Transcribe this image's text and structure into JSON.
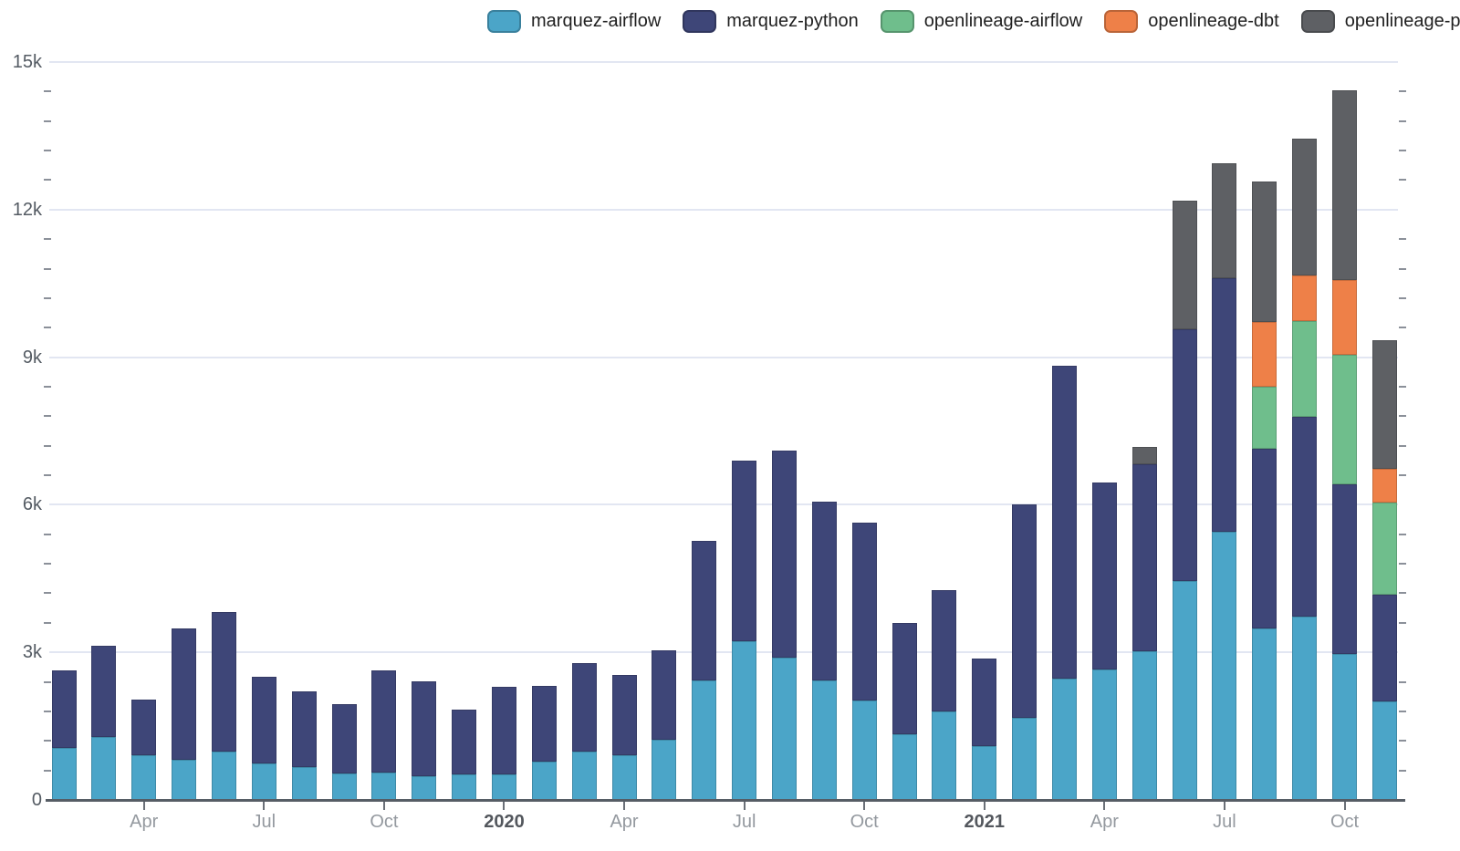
{
  "legend": {
    "position": "top-right-of-center"
  },
  "y_axis": {
    "labels": [
      {
        "value": 0,
        "label": "0"
      },
      {
        "value": 3000,
        "label": "3k"
      },
      {
        "value": 6000,
        "label": "6k"
      },
      {
        "value": 9000,
        "label": "9k"
      },
      {
        "value": 12000,
        "label": "12k"
      },
      {
        "value": 15000,
        "label": "15k"
      }
    ],
    "minor_step": 600,
    "max": 15000
  },
  "x_axis": {
    "ticks": [
      {
        "index": 2,
        "label": "Apr",
        "bold": false
      },
      {
        "index": 5,
        "label": "Jul",
        "bold": false
      },
      {
        "index": 8,
        "label": "Oct",
        "bold": false
      },
      {
        "index": 11,
        "label": "2020",
        "bold": true
      },
      {
        "index": 14,
        "label": "Apr",
        "bold": false
      },
      {
        "index": 17,
        "label": "Jul",
        "bold": false
      },
      {
        "index": 20,
        "label": "Oct",
        "bold": false
      },
      {
        "index": 23,
        "label": "2021",
        "bold": true
      },
      {
        "index": 26,
        "label": "Apr",
        "bold": false
      },
      {
        "index": 29,
        "label": "Jul",
        "bold": false
      },
      {
        "index": 32,
        "label": "Oct",
        "bold": false
      }
    ]
  },
  "chart_data": {
    "type": "bar",
    "stacked": true,
    "title": "",
    "xlabel": "",
    "ylabel": "",
    "ylim": [
      0,
      15000
    ],
    "grid": true,
    "legend_position": "top",
    "categories": [
      "2019-02",
      "2019-03",
      "2019-04",
      "2019-05",
      "2019-06",
      "2019-07",
      "2019-08",
      "2019-09",
      "2019-10",
      "2019-11",
      "2019-12",
      "2020-01",
      "2020-02",
      "2020-03",
      "2020-04",
      "2020-05",
      "2020-06",
      "2020-07",
      "2020-08",
      "2020-09",
      "2020-10",
      "2020-11",
      "2020-12",
      "2021-01",
      "2021-02",
      "2021-03",
      "2021-04",
      "2021-05",
      "2021-06",
      "2021-07",
      "2021-08",
      "2021-09",
      "2021-10",
      "2021-11"
    ],
    "series": [
      {
        "name": "marquez-airflow",
        "color": "#4ba5c8",
        "values": [
          1050,
          1280,
          910,
          815,
          990,
          750,
          675,
          530,
          560,
          490,
          520,
          520,
          780,
          980,
          900,
          1230,
          2420,
          3220,
          2900,
          2430,
          2020,
          1340,
          1790,
          1100,
          1670,
          2460,
          2650,
          3030,
          4450,
          5450,
          3490,
          3730,
          2960,
          2000
        ]
      },
      {
        "name": "marquez-python",
        "color": "#3e4678",
        "values": [
          1575,
          1845,
          1130,
          2675,
          2835,
          1760,
          1525,
          1410,
          2080,
          1920,
          1320,
          1770,
          1540,
          1810,
          1640,
          1805,
          2840,
          3680,
          4200,
          3640,
          3610,
          2260,
          2480,
          1770,
          4330,
          6360,
          3810,
          3800,
          5120,
          5150,
          3650,
          4050,
          3460,
          2180
        ]
      },
      {
        "name": "openlineage-airflow",
        "color": "#6fbe8c",
        "values": [
          0,
          0,
          0,
          0,
          0,
          0,
          0,
          0,
          0,
          0,
          0,
          0,
          0,
          0,
          0,
          0,
          0,
          0,
          0,
          0,
          0,
          0,
          0,
          0,
          0,
          0,
          0,
          0,
          0,
          0,
          1260,
          1950,
          2620,
          1860
        ]
      },
      {
        "name": "openlineage-dbt",
        "color": "#ee8048",
        "values": [
          0,
          0,
          0,
          0,
          0,
          0,
          0,
          0,
          0,
          0,
          0,
          0,
          0,
          0,
          0,
          0,
          0,
          0,
          0,
          0,
          0,
          0,
          0,
          0,
          0,
          0,
          0,
          0,
          0,
          0,
          1320,
          940,
          1520,
          690
        ]
      },
      {
        "name": "openlineage-python",
        "color": "#5e6064",
        "values": [
          0,
          0,
          0,
          0,
          0,
          0,
          0,
          0,
          0,
          0,
          0,
          0,
          0,
          0,
          0,
          0,
          0,
          0,
          0,
          0,
          0,
          0,
          0,
          0,
          0,
          0,
          0,
          350,
          2610,
          2350,
          2850,
          2770,
          3860,
          2610
        ]
      }
    ]
  }
}
